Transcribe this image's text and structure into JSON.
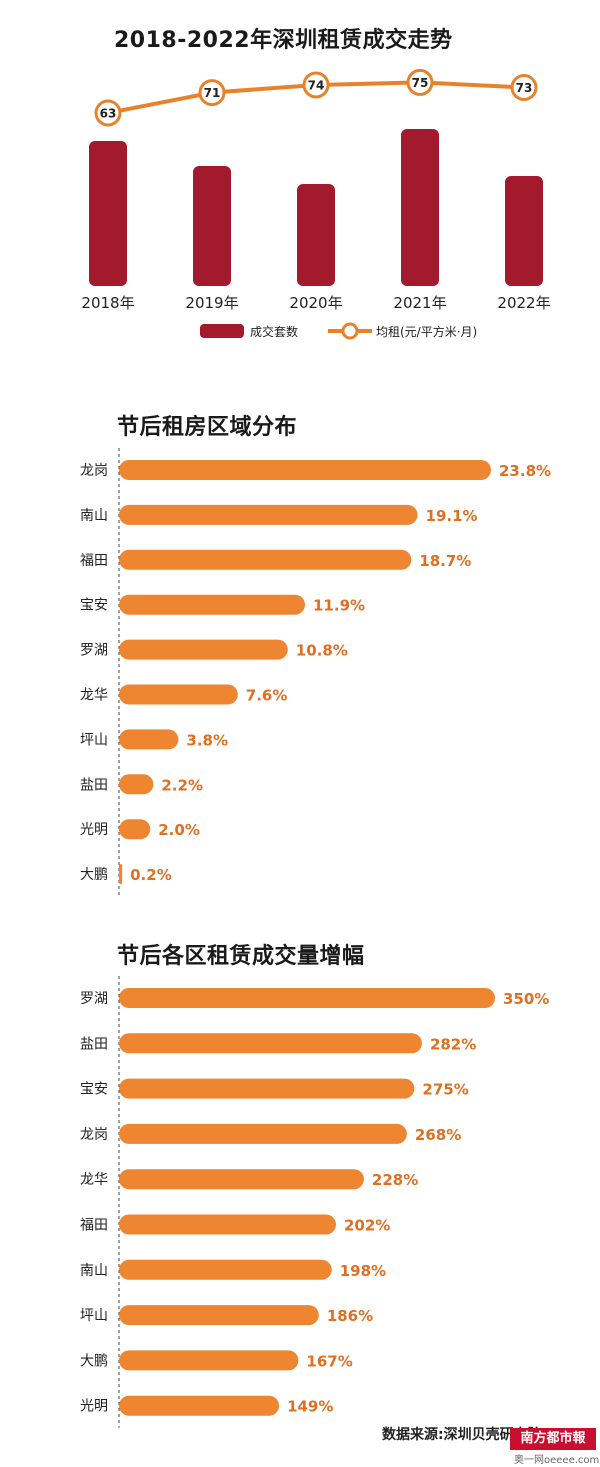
{
  "chart_data": [
    {
      "type": "bar",
      "title": "2018-2022年深圳租赁成交走势",
      "categories": [
        "2018年",
        "2019年",
        "2020年",
        "2021年",
        "2022年"
      ],
      "series": [
        {
          "name": "成交套数",
          "type": "bar",
          "values": [
            145,
            120,
            102,
            157,
            110
          ]
        },
        {
          "name": "均租(元/平方米·月)",
          "type": "line",
          "values": [
            63,
            71,
            74,
            75,
            73
          ]
        }
      ],
      "legend_position": "bottom",
      "colors": {
        "bar": "#a21a2c",
        "line": "#e8822a"
      }
    },
    {
      "type": "bar",
      "orientation": "horizontal",
      "title": "节后租房区域分布",
      "categories": [
        "龙岗",
        "南山",
        "福田",
        "宝安",
        "罗湖",
        "龙华",
        "坪山",
        "盐田",
        "光明",
        "大鹏"
      ],
      "values": [
        23.8,
        19.1,
        18.7,
        11.9,
        10.8,
        7.6,
        3.8,
        2.2,
        2.0,
        0.2
      ],
      "value_labels": [
        "23.8%",
        "19.1%",
        "18.7%",
        "11.9%",
        "10.8%",
        "7.6%",
        "3.8%",
        "2.2%",
        "2.0%",
        "0.2%"
      ],
      "unit": "%",
      "colors": {
        "bar": "#ee8631",
        "label": "#e06f22"
      }
    },
    {
      "type": "bar",
      "orientation": "horizontal",
      "title": "节后各区租赁成交量增幅",
      "categories": [
        "罗湖",
        "盐田",
        "宝安",
        "龙岗",
        "龙华",
        "福田",
        "南山",
        "坪山",
        "大鹏",
        "光明"
      ],
      "values": [
        350,
        282,
        275,
        268,
        228,
        202,
        198,
        186,
        167,
        149
      ],
      "value_labels": [
        "350%",
        "282%",
        "275%",
        "268%",
        "228%",
        "202%",
        "198%",
        "186%",
        "167%",
        "149%"
      ],
      "unit": "%",
      "colors": {
        "bar": "#ee8631",
        "label": "#e06f22"
      }
    }
  ],
  "footer": {
    "source": "数据来源:深圳贝壳研究院",
    "logo_text": "南方都市報",
    "website": "奥一网oeeee.com"
  }
}
